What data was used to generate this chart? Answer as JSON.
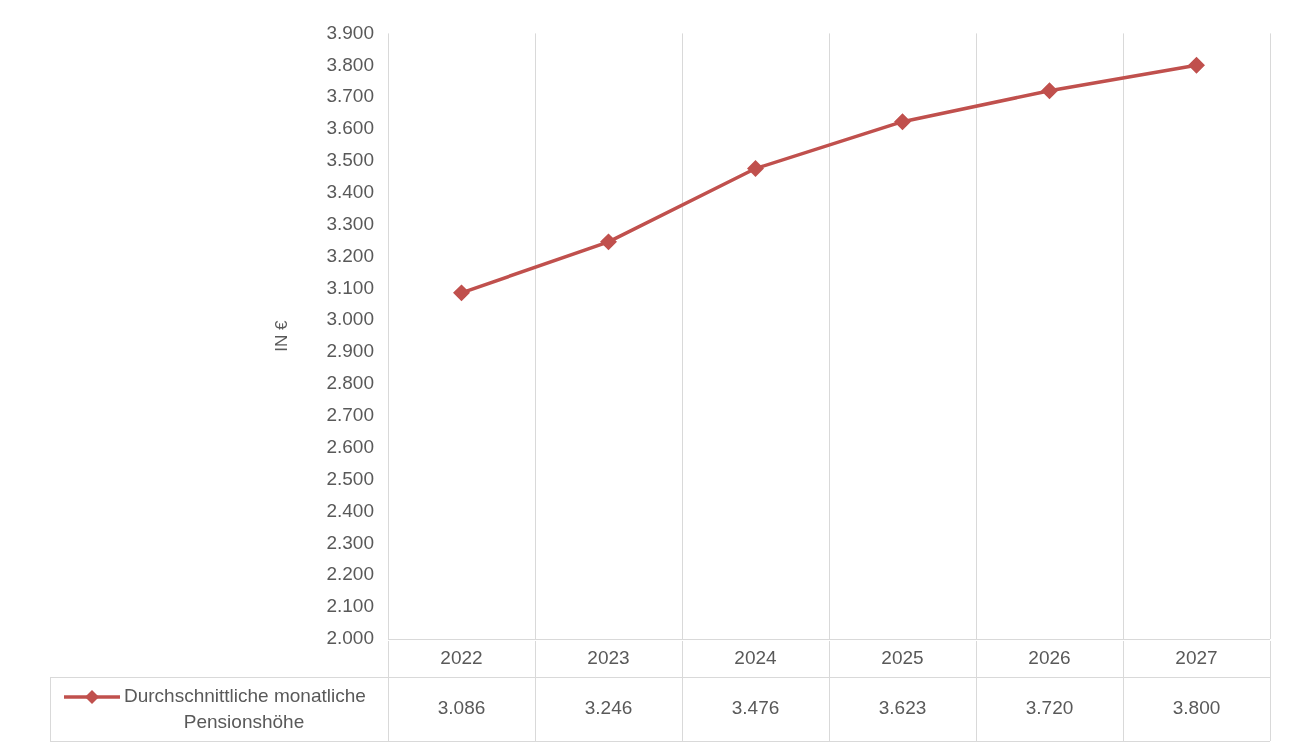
{
  "chart_data": {
    "type": "line",
    "ylabel": "IN €",
    "categories": [
      "2022",
      "2023",
      "2024",
      "2025",
      "2026",
      "2027"
    ],
    "series": [
      {
        "name": "Durchschnittliche monatliche Pensionshöhe",
        "color": "#c0504d",
        "values": [
          3086,
          3246,
          3476,
          3623,
          3720,
          3800
        ],
        "value_labels": [
          "3.086",
          "3.246",
          "3.476",
          "3.623",
          "3.720",
          "3.800"
        ]
      }
    ],
    "ylim": [
      2000,
      3900
    ],
    "yticks": [
      {
        "value": 2000,
        "label": "2.000"
      },
      {
        "value": 2100,
        "label": "2.100"
      },
      {
        "value": 2200,
        "label": "2.200"
      },
      {
        "value": 2300,
        "label": "2.300"
      },
      {
        "value": 2400,
        "label": "2.400"
      },
      {
        "value": 2500,
        "label": "2.500"
      },
      {
        "value": 2600,
        "label": "2.600"
      },
      {
        "value": 2700,
        "label": "2.700"
      },
      {
        "value": 2800,
        "label": "2.800"
      },
      {
        "value": 2900,
        "label": "2.900"
      },
      {
        "value": 3000,
        "label": "3.000"
      },
      {
        "value": 3100,
        "label": "3.100"
      },
      {
        "value": 3200,
        "label": "3.200"
      },
      {
        "value": 3300,
        "label": "3.300"
      },
      {
        "value": 3400,
        "label": "3.400"
      },
      {
        "value": 3500,
        "label": "3.500"
      },
      {
        "value": 3600,
        "label": "3.600"
      },
      {
        "value": 3700,
        "label": "3.700"
      },
      {
        "value": 3800,
        "label": "3.800"
      },
      {
        "value": 3900,
        "label": "3.900"
      }
    ],
    "grid": "x",
    "legend": "bottom",
    "marker": "diamond"
  }
}
